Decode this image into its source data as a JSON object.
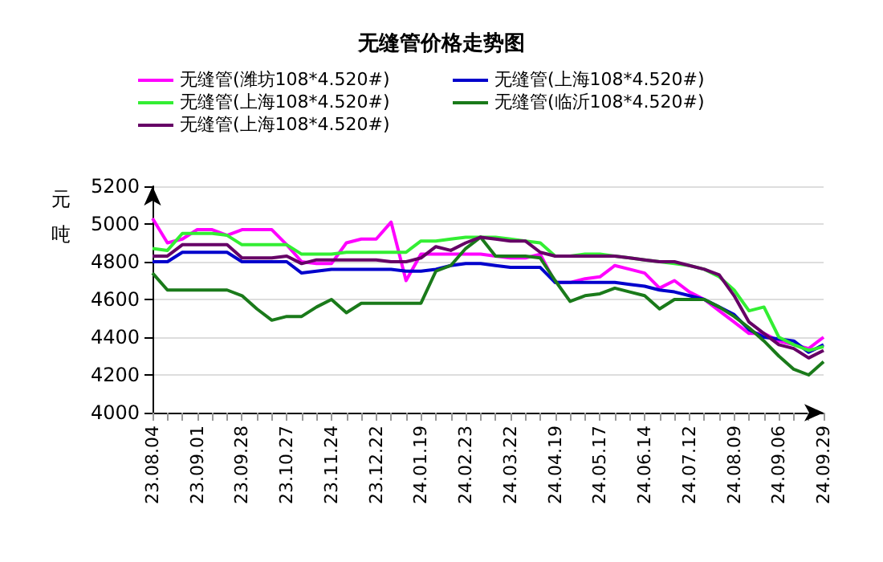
{
  "chart_data": {
    "type": "line",
    "title": "无缝管价格走势图",
    "ylabel": "元吨",
    "categories": [
      "23.08.04",
      null,
      null,
      "23.09.01",
      null,
      null,
      "23.09.28",
      null,
      null,
      "23.10.27",
      null,
      null,
      "23.11.24",
      null,
      null,
      "23.12.22",
      null,
      null,
      "24.01.19",
      null,
      null,
      "24.02.23",
      null,
      null,
      "24.03.22",
      null,
      null,
      "24.04.19",
      null,
      null,
      "24.05.17",
      null,
      null,
      "24.06.14",
      null,
      null,
      "24.07.12",
      null,
      null,
      "24.08.09",
      null,
      null,
      "24.09.06",
      null,
      null,
      "24.09.29"
    ],
    "series": [
      {
        "name": "无缝管(潍坊108*4.520#)",
        "color": "#ff00ff",
        "values": [
          5030,
          4900,
          4920,
          4970,
          4970,
          4940,
          4970,
          4970,
          4970,
          4890,
          4800,
          4790,
          4790,
          4900,
          4920,
          4920,
          5010,
          4700,
          4840,
          4840,
          4840,
          4840,
          4840,
          4830,
          4820,
          4820,
          4840,
          4690,
          4690,
          4710,
          4720,
          4780,
          4760,
          4740,
          4660,
          4700,
          4640,
          4600,
          4540,
          4480,
          4420,
          4420,
          4380,
          4360,
          4340,
          4400
        ]
      },
      {
        "name": "无缝管(上海108*4.520#)",
        "color": "#0000cc",
        "values": [
          4800,
          4800,
          4850,
          4850,
          4850,
          4850,
          4800,
          4800,
          4800,
          4800,
          4740,
          4750,
          4760,
          4760,
          4760,
          4760,
          4760,
          4750,
          4750,
          4760,
          4780,
          4790,
          4790,
          4780,
          4770,
          4770,
          4770,
          4690,
          4690,
          4690,
          4690,
          4690,
          4680,
          4670,
          4650,
          4640,
          4620,
          4600,
          4560,
          4520,
          4440,
          4400,
          4390,
          4380,
          4320,
          4360
        ]
      },
      {
        "name": "无缝管(上海108*4.520#)",
        "color": "#33ee33",
        "values": [
          4870,
          4860,
          4950,
          4950,
          4950,
          4940,
          4890,
          4890,
          4890,
          4890,
          4840,
          4840,
          4840,
          4850,
          4850,
          4850,
          4850,
          4850,
          4910,
          4910,
          4920,
          4930,
          4930,
          4930,
          4920,
          4910,
          4900,
          4830,
          4830,
          4840,
          4840,
          4830,
          4820,
          4810,
          4800,
          4790,
          4780,
          4760,
          4720,
          4650,
          4540,
          4560,
          4400,
          4360,
          4330,
          4350
        ]
      },
      {
        "name": "无缝管(临沂108*4.520#)",
        "color": "#1a7a1a",
        "values": [
          4740,
          4650,
          4650,
          4650,
          4650,
          4650,
          4620,
          4550,
          4490,
          4510,
          4510,
          4560,
          4600,
          4530,
          4580,
          4580,
          4580,
          4580,
          4580,
          4750,
          4780,
          4870,
          4930,
          4830,
          4830,
          4830,
          4820,
          4700,
          4590,
          4620,
          4630,
          4660,
          4640,
          4620,
          4550,
          4600,
          4600,
          4600,
          4560,
          4510,
          4450,
          4380,
          4300,
          4230,
          4200,
          4270
        ]
      },
      {
        "name": "无缝管(上海108*4.520#)",
        "color": "#660066",
        "values": [
          4830,
          4830,
          4890,
          4890,
          4890,
          4890,
          4820,
          4820,
          4820,
          4830,
          4790,
          4810,
          4810,
          4810,
          4810,
          4810,
          4800,
          4800,
          4820,
          4880,
          4860,
          4900,
          4930,
          4920,
          4910,
          4910,
          4850,
          4830,
          4830,
          4830,
          4830,
          4830,
          4820,
          4810,
          4800,
          4800,
          4780,
          4760,
          4730,
          4620,
          4480,
          4420,
          4360,
          4340,
          4290,
          4330
        ]
      }
    ],
    "ylim": [
      4000,
      5200
    ],
    "yticks": [
      4000,
      4200,
      4400,
      4600,
      4800,
      5000,
      5200
    ],
    "grid": "y",
    "legend": "top",
    "marker": "none",
    "line_style": "solid"
  }
}
